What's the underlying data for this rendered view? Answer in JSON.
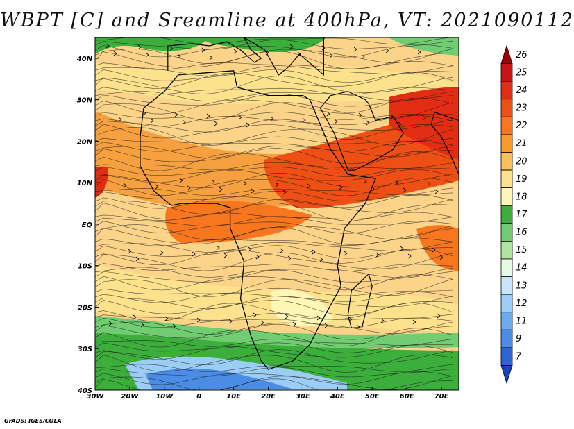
{
  "title": "WBPT [C] and Sreamline at 400hPa, VT: 2021090112",
  "credit": "GrADS: IGES/COLA",
  "map": {
    "region": "Africa and surrounding oceans",
    "lon_range": [
      -30,
      75
    ],
    "lat_range": [
      -40,
      45
    ],
    "overlay": "streamlines",
    "lon_ticks": [
      "30W",
      "20W",
      "10W",
      "0",
      "10E",
      "20E",
      "30E",
      "40E",
      "50E",
      "60E",
      "70E"
    ],
    "lat_ticks": [
      "40N",
      "30N",
      "20N",
      "10N",
      "EQ",
      "10S",
      "20S",
      "30S",
      "40S"
    ]
  },
  "colorbar": {
    "labels": [
      "26",
      "25",
      "24",
      "23",
      "22",
      "21",
      "20",
      "19",
      "18",
      "17",
      "16",
      "15",
      "14",
      "13",
      "12",
      "11",
      "9",
      "7"
    ],
    "colors": [
      "#9e0000",
      "#c81414",
      "#e22d14",
      "#ee4f14",
      "#f7761e",
      "#fa9b28",
      "#fcc15a",
      "#fde28e",
      "#fdf6b4",
      "#3cae3c",
      "#72cd72",
      "#aee6a0",
      "#e6fae6",
      "#c8e6fa",
      "#9ccdf5",
      "#6eaaf0",
      "#4b8ce6",
      "#2c64d2",
      "#1446be"
    ]
  }
}
